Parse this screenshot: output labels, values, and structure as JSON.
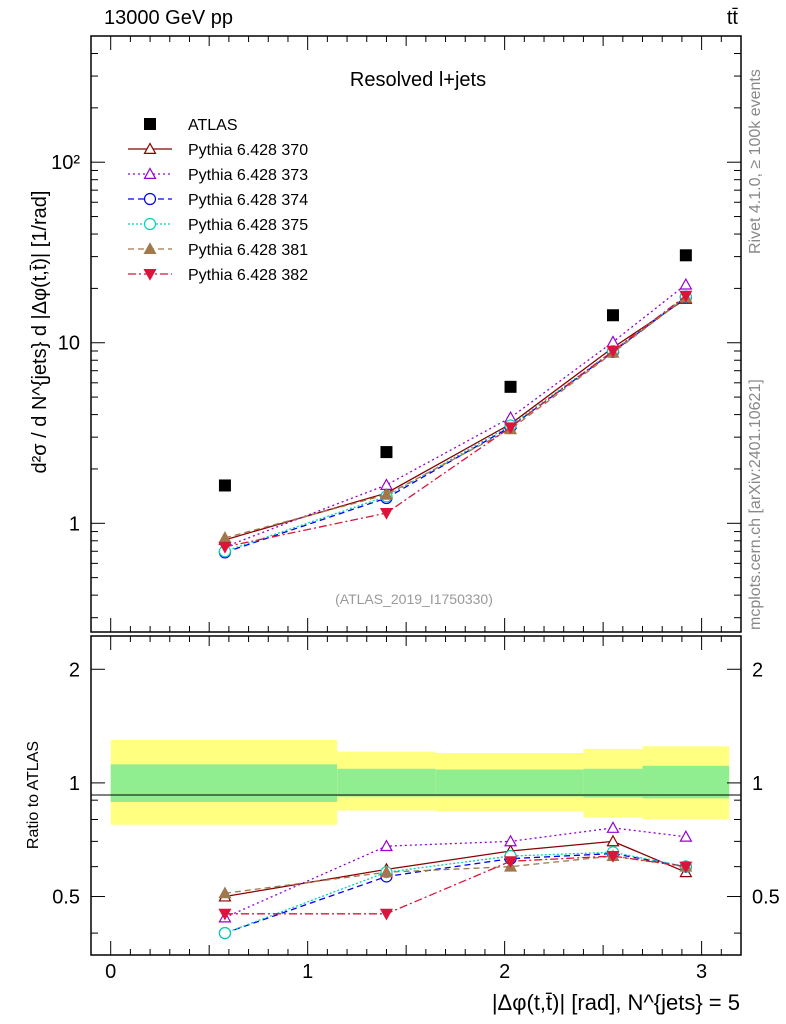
{
  "header": {
    "energy_label": "13000 GeV pp",
    "process_label": "tt̄",
    "rivet_label": "Rivet 4.1.0, ≥ 100k events",
    "mcplots_label": "mcplots.cern.ch [arXiv:2401.10621]"
  },
  "main_plot": {
    "title": "Resolved l+jets",
    "analysis_tag": "(ATLAS_2019_I1750330)",
    "ylabel": "d²σ / d N^{jets} d |Δφ(t,t̄)| [1/rad]",
    "y_tick_labels": [
      "1",
      "10",
      "10²"
    ]
  },
  "ratio_plot": {
    "ylabel": "Ratio to ATLAS",
    "y_tick_labels": [
      "0.5",
      "1",
      "2"
    ]
  },
  "xaxis": {
    "label": "|Δφ(t,t̄)| [rad], N^{jets} = 5",
    "tick_labels": [
      "0",
      "1",
      "2",
      "3"
    ]
  },
  "legend": {
    "position": "top-left",
    "entries": [
      "ATLAS",
      "Pythia 6.428 370",
      "Pythia 6.428 373",
      "Pythia 6.428 374",
      "Pythia 6.428 375",
      "Pythia 6.428 381",
      "Pythia 6.428 382"
    ]
  },
  "chart_data": {
    "type": "scatter",
    "title": "Resolved l+jets",
    "xlabel": "|Δφ(t,t̄)| [rad], N^{jets} = 5",
    "ylabel": "d²σ / d N^{jets} d |Δφ(t,t̄)| [1/rad]",
    "xlim": [
      -0.1,
      3.2
    ],
    "ylim": [
      0.25,
      500
    ],
    "yscale": "log",
    "ratio_ylim": [
      0.35,
      2.45
    ],
    "x": [
      0.58,
      1.4,
      2.03,
      2.55,
      2.92
    ],
    "bin_edges": [
      0,
      1.15,
      1.65,
      2.4,
      2.7,
      3.14
    ],
    "data_band": {
      "inner_lo": [
        0.89,
        0.92,
        0.92,
        0.915,
        0.91
      ],
      "inner_hi": [
        1.12,
        1.09,
        1.085,
        1.09,
        1.11
      ],
      "outer_lo": [
        0.775,
        0.845,
        0.84,
        0.81,
        0.8
      ],
      "outer_hi": [
        1.3,
        1.21,
        1.2,
        1.23,
        1.25
      ]
    },
    "series": [
      {
        "name": "ATLAS",
        "color": "#000000",
        "marker": "square",
        "dash": "",
        "values": [
          1.62,
          2.48,
          5.7,
          14.2,
          30.5
        ],
        "ratio": [
          1,
          1,
          1,
          1,
          1
        ]
      },
      {
        "name": "Pythia 6.428 370",
        "color": "#8b0000",
        "marker": "triangle-open",
        "dash": "",
        "values": [
          0.81,
          1.47,
          3.55,
          9.4,
          17.5
        ],
        "ratio": [
          0.5,
          0.59,
          0.66,
          0.7,
          0.58
        ]
      },
      {
        "name": "Pythia 6.428 373",
        "color": "#9400d3",
        "marker": "triangle-open",
        "dash": "2,3",
        "values": [
          0.74,
          1.63,
          3.85,
          10.1,
          21.0
        ],
        "ratio": [
          0.44,
          0.68,
          0.7,
          0.76,
          0.72
        ]
      },
      {
        "name": "Pythia 6.428 374",
        "color": "#0000ee",
        "marker": "circle-open",
        "dash": "6,4",
        "values": [
          0.69,
          1.38,
          3.42,
          8.9,
          17.9
        ],
        "ratio": [
          0.4,
          0.565,
          0.63,
          0.65,
          0.6
        ]
      },
      {
        "name": "Pythia 6.428 375",
        "color": "#00d2b4",
        "marker": "circle-open",
        "dash": "2,2",
        "values": [
          0.7,
          1.41,
          3.48,
          9.0,
          18.0
        ],
        "ratio": [
          0.4,
          0.58,
          0.64,
          0.655,
          0.6
        ]
      },
      {
        "name": "Pythia 6.428 381",
        "color": "#a0784b",
        "marker": "triangle",
        "dash": "6,4",
        "values": [
          0.83,
          1.44,
          3.32,
          8.8,
          17.8
        ],
        "ratio": [
          0.51,
          0.58,
          0.6,
          0.64,
          0.6
        ]
      },
      {
        "name": "Pythia 6.428 382",
        "color": "#dc143c",
        "marker": "triangle-down",
        "dash": "8,3,2,3",
        "values": [
          0.74,
          1.14,
          3.4,
          9.0,
          18.2
        ],
        "ratio": [
          0.45,
          0.45,
          0.62,
          0.64,
          0.6
        ]
      }
    ]
  }
}
